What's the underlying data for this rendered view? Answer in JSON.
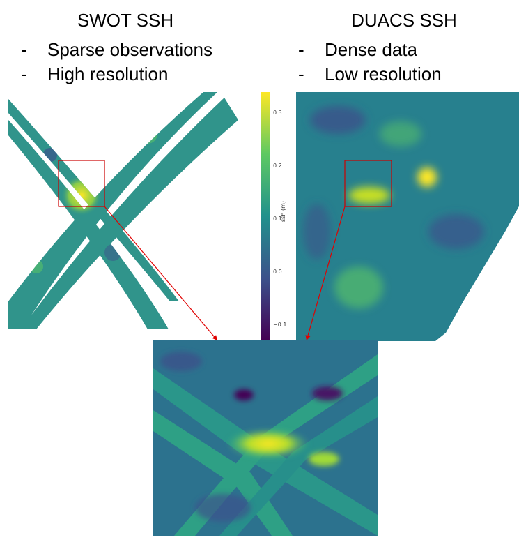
{
  "swot": {
    "title": "SWOT SSH",
    "bullets": [
      "Sparse observations",
      "High resolution"
    ]
  },
  "duacs": {
    "title": "DUACS SSH",
    "bullets": [
      "Dense data",
      "Low resolution"
    ]
  },
  "bullet_marker": "-",
  "colorbar": {
    "label": "ssh (m)",
    "ticks": [
      "0.3",
      "0.2",
      "0.1",
      "0.0",
      "−0.1"
    ],
    "colors": [
      "#fde725",
      "#5ec962",
      "#21918c",
      "#3b528b",
      "#440154"
    ]
  },
  "colors": {
    "highlight_box": "#cc0000",
    "arrow": "#e00000"
  }
}
